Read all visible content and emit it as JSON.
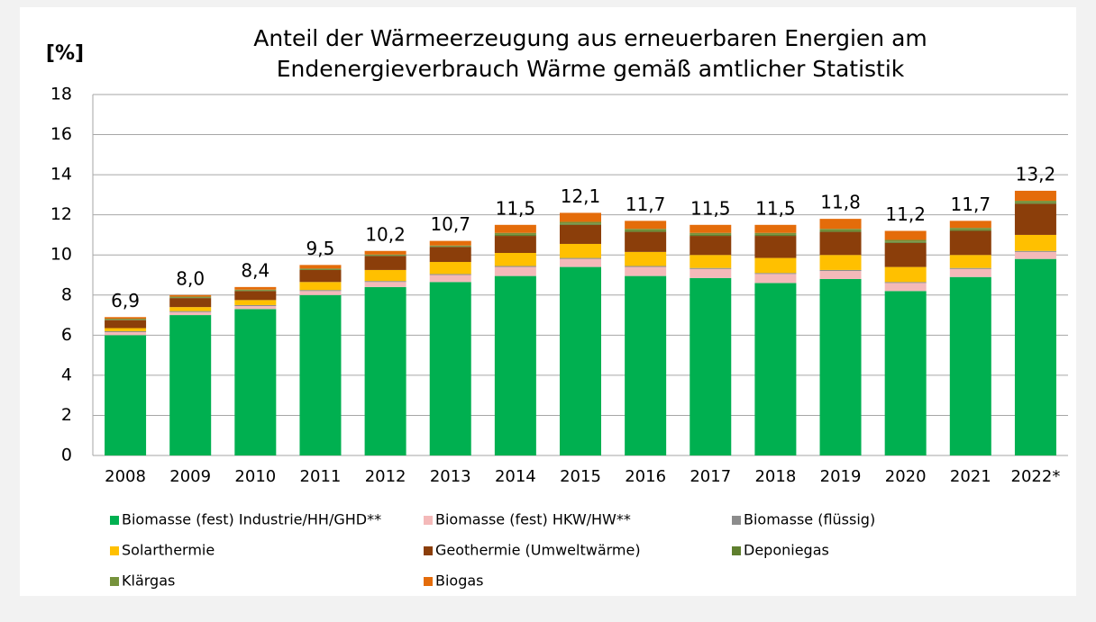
{
  "chart_data": {
    "type": "stacked_bar",
    "title": [
      "Anteil der Wärmeerzeugung aus erneuerbaren Energien am",
      "Endenergieverbrauch Wärme gemäß amtlicher Statistik"
    ],
    "ylabel": "[%]",
    "categories": [
      "2008",
      "2009",
      "2010",
      "2011",
      "2012",
      "2013",
      "2014",
      "2015",
      "2016",
      "2017",
      "2018",
      "2019",
      "2020",
      "2021",
      "2022*"
    ],
    "ylim": [
      0,
      18
    ],
    "yticks": [
      0,
      2,
      4,
      6,
      8,
      10,
      12,
      14,
      16,
      18
    ],
    "grid": true,
    "series": [
      {
        "name": "Biomasse (fest) Industrie/HH/GHD**",
        "color": "#00b050",
        "values": [
          6.0,
          7.0,
          7.3,
          8.0,
          8.4,
          8.65,
          8.95,
          9.4,
          8.95,
          8.85,
          8.6,
          8.8,
          8.2,
          8.9,
          9.8
        ]
      },
      {
        "name": "Biomasse (fest) HKW/HW**",
        "color": "#f4b9b9",
        "values": [
          0.15,
          0.15,
          0.15,
          0.2,
          0.25,
          0.35,
          0.45,
          0.4,
          0.45,
          0.45,
          0.45,
          0.4,
          0.4,
          0.4,
          0.35
        ]
      },
      {
        "name": "Biomasse (flüssig)",
        "color": "#8c8c8c",
        "values": [
          0.05,
          0.05,
          0.05,
          0.05,
          0.05,
          0.05,
          0.05,
          0.05,
          0.05,
          0.05,
          0.05,
          0.05,
          0.05,
          0.05,
          0.05
        ]
      },
      {
        "name": "Solarthermie",
        "color": "#ffc000",
        "values": [
          0.15,
          0.2,
          0.25,
          0.4,
          0.55,
          0.6,
          0.65,
          0.7,
          0.7,
          0.65,
          0.75,
          0.75,
          0.75,
          0.65,
          0.8
        ]
      },
      {
        "name": "Geothermie (Umweltwärme)",
        "color": "#8b3e0a",
        "values": [
          0.4,
          0.45,
          0.45,
          0.6,
          0.7,
          0.75,
          0.85,
          0.95,
          1.0,
          0.95,
          1.1,
          1.15,
          1.2,
          1.2,
          1.55
        ]
      },
      {
        "name": "Deponiegas",
        "color": "#5f7f2e",
        "values": [
          0.02,
          0.02,
          0.02,
          0.02,
          0.02,
          0.02,
          0.05,
          0.05,
          0.05,
          0.05,
          0.05,
          0.05,
          0.05,
          0.05,
          0.05
        ]
      },
      {
        "name": "Klärgas",
        "color": "#76923c",
        "values": [
          0.05,
          0.05,
          0.05,
          0.05,
          0.05,
          0.05,
          0.1,
          0.1,
          0.1,
          0.1,
          0.1,
          0.1,
          0.1,
          0.1,
          0.1
        ]
      },
      {
        "name": "Biogas",
        "color": "#e46c0a",
        "values": [
          0.08,
          0.08,
          0.13,
          0.18,
          0.18,
          0.23,
          0.4,
          0.45,
          0.4,
          0.4,
          0.4,
          0.5,
          0.45,
          0.35,
          0.5
        ]
      }
    ],
    "totals": [
      6.9,
      8.0,
      8.4,
      9.5,
      10.2,
      10.7,
      11.5,
      12.1,
      11.7,
      11.5,
      11.5,
      11.8,
      11.2,
      11.7,
      13.2
    ],
    "total_labels": [
      "6,9",
      "8,0",
      "8,4",
      "9,5",
      "10,2",
      "10,7",
      "11,5",
      "12,1",
      "11,7",
      "11,5",
      "11,5",
      "11,8",
      "11,2",
      "11,7",
      "13,2"
    ]
  }
}
